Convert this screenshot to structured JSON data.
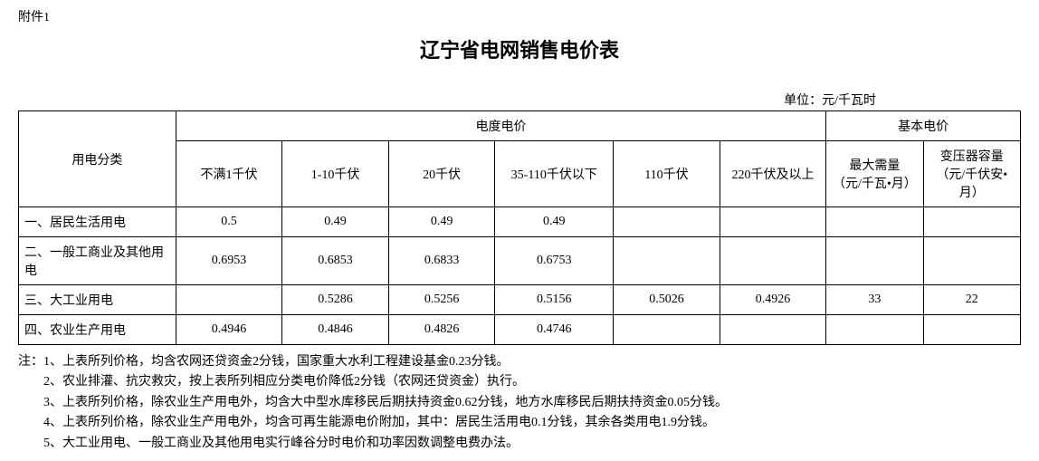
{
  "attachment_label": "附件1",
  "title": "辽宁省电网销售电价表",
  "unit_label": "单位：元/千瓦时",
  "header": {
    "category": "用电分类",
    "energy_group": "电度电价",
    "basic_group": "基本电价",
    "voltage_cols": [
      "不满1千伏",
      "1-10千伏",
      "20千伏",
      "35-110千伏以下",
      "110千伏",
      "220千伏及以上"
    ],
    "basic_cols": [
      "最大需量\n（元/千瓦•月）",
      "变压器容量\n（元/千伏安•月）"
    ]
  },
  "rows": [
    {
      "label": "一、居民生活用电",
      "v": [
        "0.5",
        "0.49",
        "0.49",
        "0.49",
        "",
        ""
      ],
      "b": [
        "",
        ""
      ]
    },
    {
      "label": "二、一般工商业及其他用电",
      "v": [
        "0.6953",
        "0.6853",
        "0.6833",
        "0.6753",
        "",
        ""
      ],
      "b": [
        "",
        ""
      ]
    },
    {
      "label": "三、大工业用电",
      "v": [
        "",
        "0.5286",
        "0.5256",
        "0.5156",
        "0.5026",
        "0.4926"
      ],
      "b": [
        "33",
        "22"
      ]
    },
    {
      "label": "四、农业生产用电",
      "v": [
        "0.4946",
        "0.4846",
        "0.4826",
        "0.4746",
        "",
        ""
      ],
      "b": [
        "",
        ""
      ]
    }
  ],
  "notes": {
    "prefix": "注：",
    "lines": [
      "1、上表所列价格，均含农网还贷资金2分钱，国家重大水利工程建设基金0.23分钱。",
      "2、农业排灌、抗灾救灾，按上表所列相应分类电价降低2分钱（农网还贷资金）执行。",
      "3、上表所列价格，除农业生产用电外，均含大中型水库移民后期扶持资金0.62分钱，地方水库移民后期扶持资金0.05分钱。",
      "4、上表所列价格，除农业生产用电外，均含可再生能源电价附加，其中：居民生活用电0.1分钱，其余各类用电1.9分钱。",
      "5、大工业用电、一般工商业及其他用电实行峰谷分时电价和功率因数调整电费办法。"
    ]
  },
  "style": {
    "font_family": "SimSun",
    "title_fontsize_pt": 16,
    "body_fontsize_pt": 10.5,
    "border_color": "#000000",
    "background_color": "#ffffff",
    "text_color": "#000000"
  }
}
